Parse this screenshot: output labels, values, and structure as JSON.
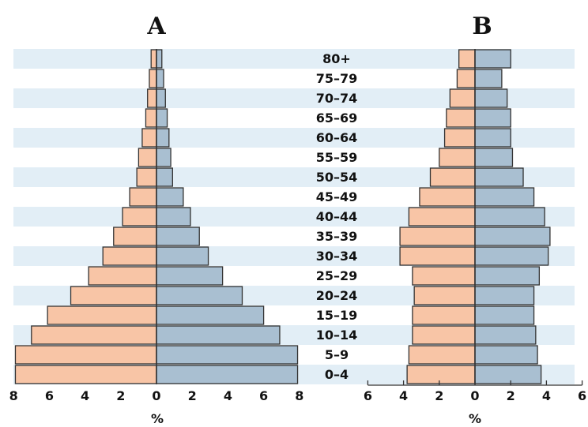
{
  "colors": {
    "female": "#f8c5a6",
    "male": "#a9bfd1",
    "stripe": "#e2eef6",
    "axis": "#333333"
  },
  "chart_data": {
    "type": "bar",
    "orientation": "horizontal",
    "subtype": "population-pyramid",
    "age_groups": [
      "80+",
      "75–79",
      "70–74",
      "65–69",
      "60–64",
      "55–59",
      "50–54",
      "45–49",
      "40–44",
      "35–39",
      "30–34",
      "25–29",
      "20–24",
      "15–19",
      "10–14",
      "5–9",
      "0–4"
    ],
    "xlabel": "%",
    "ticks": [
      "6",
      "4",
      "2",
      "0",
      "2",
      "4",
      "6"
    ],
    "grid": false,
    "legend": "none",
    "pyramids": [
      {
        "title": "A",
        "xlim": [
          -8,
          8
        ],
        "ticks": [
          "8",
          "6",
          "4",
          "2",
          "0",
          "2",
          "4",
          "6",
          "8"
        ],
        "series": [
          {
            "side": "left",
            "values": [
              0.3,
              0.4,
              0.5,
              0.6,
              0.8,
              1.0,
              1.1,
              1.5,
              1.9,
              2.4,
              3.0,
              3.8,
              4.8,
              6.1,
              7.0,
              7.9,
              7.9
            ]
          },
          {
            "side": "right",
            "values": [
              0.3,
              0.4,
              0.5,
              0.6,
              0.7,
              0.8,
              0.9,
              1.5,
              1.9,
              2.4,
              2.9,
              3.7,
              4.8,
              6.0,
              6.9,
              7.9,
              7.9
            ]
          }
        ]
      },
      {
        "title": "B",
        "xlim": [
          -6,
          6
        ],
        "ticks": [
          "6",
          "4",
          "2",
          "0",
          "2",
          "4",
          "6"
        ],
        "series": [
          {
            "side": "left",
            "values": [
              0.9,
              1.0,
              1.4,
              1.6,
              1.7,
              2.0,
              2.5,
              3.1,
              3.7,
              4.2,
              4.2,
              3.5,
              3.4,
              3.5,
              3.5,
              3.7,
              3.8
            ]
          },
          {
            "side": "right",
            "values": [
              2.0,
              1.5,
              1.8,
              2.0,
              2.0,
              2.1,
              2.7,
              3.3,
              3.9,
              4.2,
              4.1,
              3.6,
              3.3,
              3.3,
              3.4,
              3.5,
              3.7
            ]
          }
        ]
      }
    ]
  }
}
